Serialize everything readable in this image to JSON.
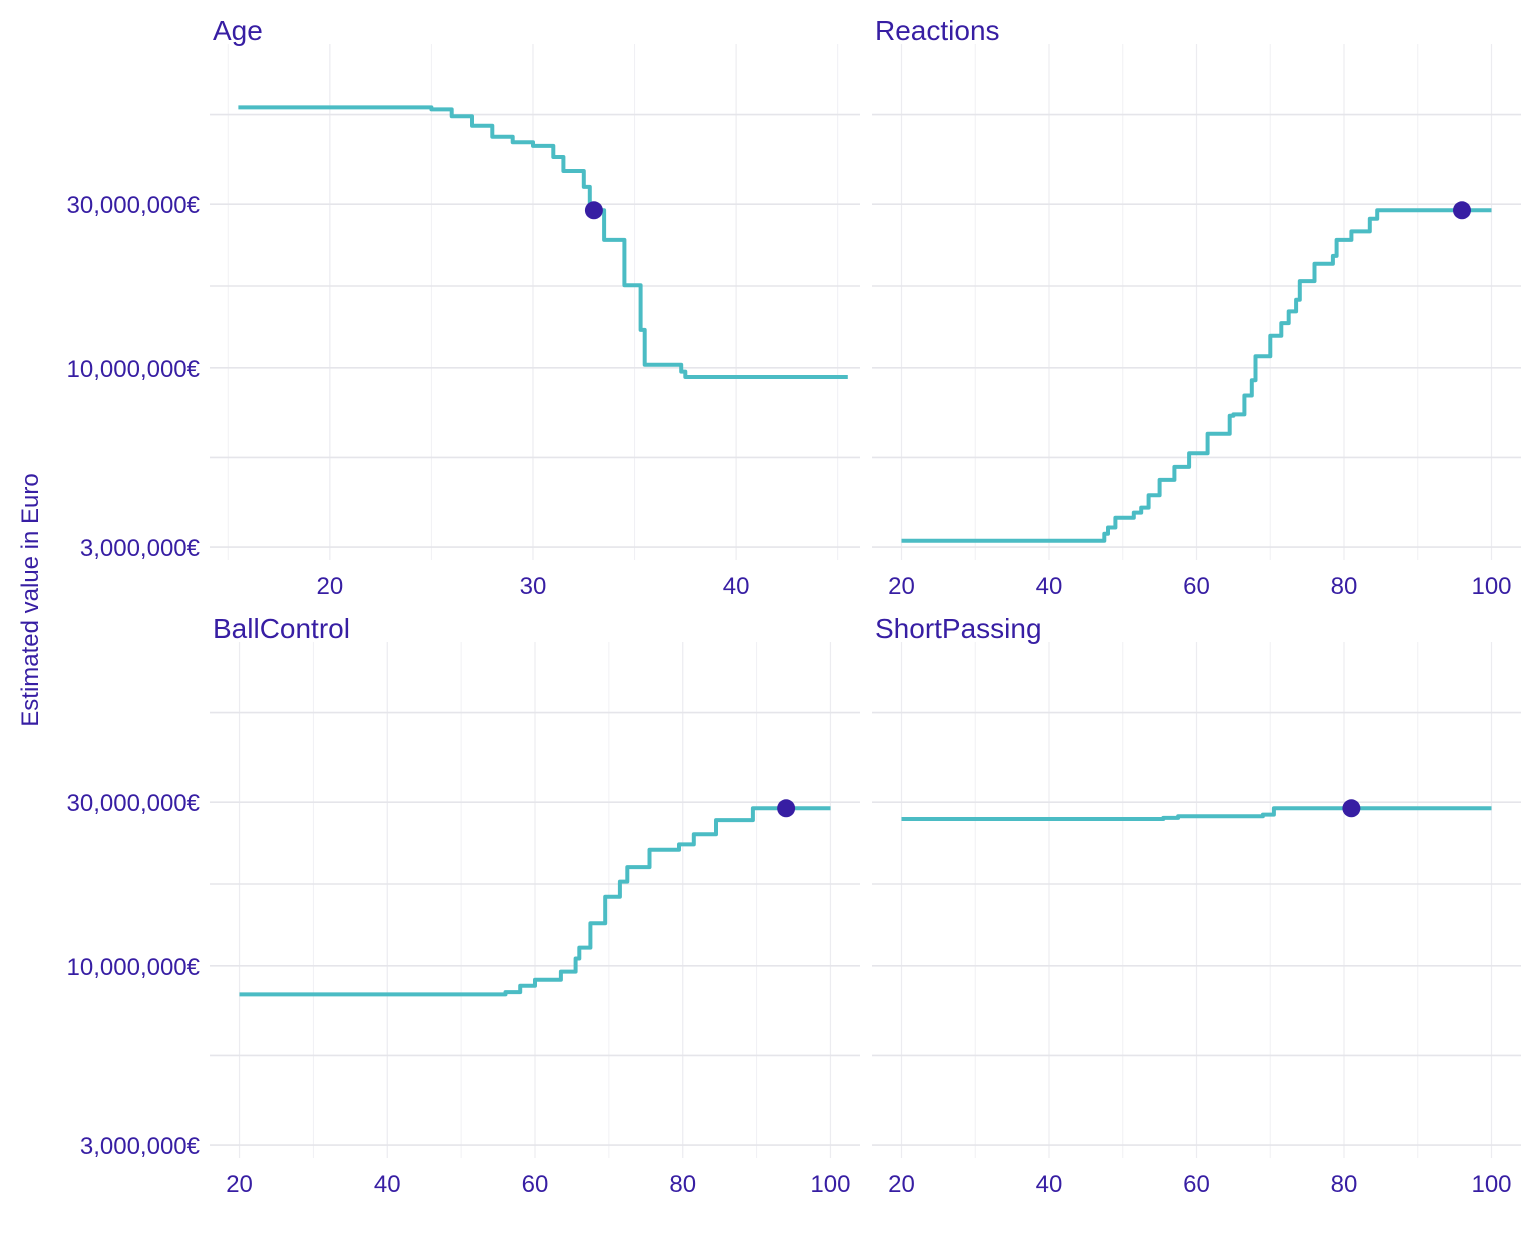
{
  "y_axis_label": "Estimated value in Euro",
  "colors": {
    "line": "#4bbcc4",
    "point": "#371ea3",
    "text": "#371ea3",
    "grid": "#e5e5ea"
  },
  "chart_data": [
    {
      "type": "line",
      "title": "Age",
      "x_ticks": [
        20,
        30,
        40
      ],
      "x_range": [
        14.1,
        46.1
      ],
      "y_scale": "log",
      "y_ticks": [
        3000000,
        10000000,
        30000000
      ],
      "y_tick_labels": [
        "3,000,000€",
        "10,000,000€",
        "30,000,000€"
      ],
      "y_range": [
        2750000,
        88000000
      ],
      "series": [
        {
          "x": [
            15.5,
            25.0,
            25.0,
            26.0,
            26.0,
            27.0,
            27.0,
            28.0,
            28.0,
            29.0,
            29.0,
            30.0,
            30.0,
            31.0,
            31.0,
            31.5,
            31.5,
            32.5,
            32.5,
            32.8,
            32.8,
            33.5,
            33.5,
            34.5,
            34.5,
            35.3,
            35.3,
            35.5,
            35.5,
            37.3,
            37.3,
            37.5,
            37.5,
            45.5
          ],
          "y": [
            57500000,
            57500000,
            56700000,
            56700000,
            54200000,
            54200000,
            50800000,
            50800000,
            47200000,
            47200000,
            45500000,
            45500000,
            44400000,
            44400000,
            41200000,
            41200000,
            37500000,
            37500000,
            33700000,
            33700000,
            28800000,
            28800000,
            23600000,
            23600000,
            17400000,
            17400000,
            12900000,
            12900000,
            10200000,
            10200000,
            9750000,
            9750000,
            9400000,
            9400000
          ]
        }
      ],
      "points": [
        {
          "x": 33.0,
          "y": 28800000
        }
      ]
    },
    {
      "type": "line",
      "title": "Reactions",
      "x_ticks": [
        20,
        40,
        60,
        80,
        100
      ],
      "x_range": [
        16,
        104
      ],
      "y_scale": "log",
      "y_ticks": [
        3000000,
        10000000,
        30000000
      ],
      "y_tick_labels": [
        "3,000,000€",
        "10,000,000€",
        "30,000,000€"
      ],
      "y_range": [
        2750000,
        88000000
      ],
      "series": [
        {
          "x": [
            20,
            47.5,
            47.5,
            48,
            48,
            49,
            49,
            51.5,
            51.5,
            52.5,
            52.5,
            53.5,
            53.5,
            55,
            55,
            57,
            57,
            59,
            59,
            61.5,
            61.5,
            64.5,
            64.5,
            65,
            65,
            66.5,
            66.5,
            67.5,
            67.5,
            68,
            68,
            70,
            70,
            71.5,
            71.5,
            72.5,
            72.5,
            73.5,
            73.5,
            74,
            74,
            76,
            76,
            78.5,
            78.5,
            79,
            79,
            81,
            81,
            83.5,
            83.5,
            84.5,
            84.5,
            100
          ],
          "y": [
            3130000,
            3130000,
            3280000,
            3280000,
            3420000,
            3420000,
            3650000,
            3650000,
            3780000,
            3780000,
            3910000,
            3910000,
            4250000,
            4250000,
            4710000,
            4710000,
            5140000,
            5140000,
            5630000,
            5630000,
            6420000,
            6420000,
            7250000,
            7250000,
            7310000,
            7310000,
            8300000,
            8300000,
            9200000,
            9200000,
            10800000,
            10800000,
            12400000,
            12400000,
            13500000,
            13500000,
            14600000,
            14600000,
            15800000,
            15800000,
            17900000,
            17900000,
            20100000,
            20100000,
            21200000,
            21200000,
            23600000,
            23600000,
            25000000,
            25000000,
            27200000,
            27200000,
            28800000,
            28800000
          ]
        }
      ],
      "points": [
        {
          "x": 96,
          "y": 28800000
        }
      ]
    },
    {
      "type": "line",
      "title": "BallControl",
      "x_ticks": [
        20,
        40,
        60,
        80,
        100
      ],
      "x_range": [
        16,
        104
      ],
      "y_scale": "log",
      "y_ticks": [
        3000000,
        10000000,
        30000000
      ],
      "y_tick_labels": [
        "3,000,000€",
        "10,000,000€",
        "30,000,000€"
      ],
      "y_range": [
        2750000,
        88000000
      ],
      "series": [
        {
          "x": [
            20,
            56,
            56,
            58,
            58,
            60,
            60,
            63.5,
            63.5,
            65.5,
            65.5,
            66,
            66,
            67.5,
            67.5,
            69.5,
            69.5,
            71.5,
            71.5,
            72.5,
            72.5,
            75.5,
            75.5,
            79.5,
            79.5,
            81.5,
            81.5,
            84.5,
            84.5,
            89.5,
            89.5,
            100
          ],
          "y": [
            8250000,
            8250000,
            8380000,
            8380000,
            8750000,
            8750000,
            9100000,
            9100000,
            9620000,
            9620000,
            10500000,
            10500000,
            11300000,
            11300000,
            13300000,
            13300000,
            15900000,
            15900000,
            17600000,
            17600000,
            19400000,
            19400000,
            21800000,
            21800000,
            22600000,
            22600000,
            24200000,
            24200000,
            26600000,
            26600000,
            28800000,
            28800000
          ]
        }
      ],
      "points": [
        {
          "x": 94,
          "y": 28800000
        }
      ]
    },
    {
      "type": "line",
      "title": "ShortPassing",
      "x_ticks": [
        20,
        40,
        60,
        80,
        100
      ],
      "x_range": [
        16,
        104
      ],
      "y_scale": "log",
      "y_ticks": [
        3000000,
        10000000,
        30000000
      ],
      "y_tick_labels": [
        "3,000,000€",
        "10,000,000€",
        "30,000,000€"
      ],
      "y_range": [
        2750000,
        88000000
      ],
      "series": [
        {
          "x": [
            20,
            55.5,
            55.5,
            57.5,
            57.5,
            69,
            69,
            70.5,
            70.5,
            100
          ],
          "y": [
            26800000,
            26800000,
            27000000,
            27000000,
            27300000,
            27300000,
            27600000,
            27600000,
            28800000,
            28800000
          ]
        }
      ],
      "points": [
        {
          "x": 81,
          "y": 28800000
        }
      ]
    }
  ]
}
